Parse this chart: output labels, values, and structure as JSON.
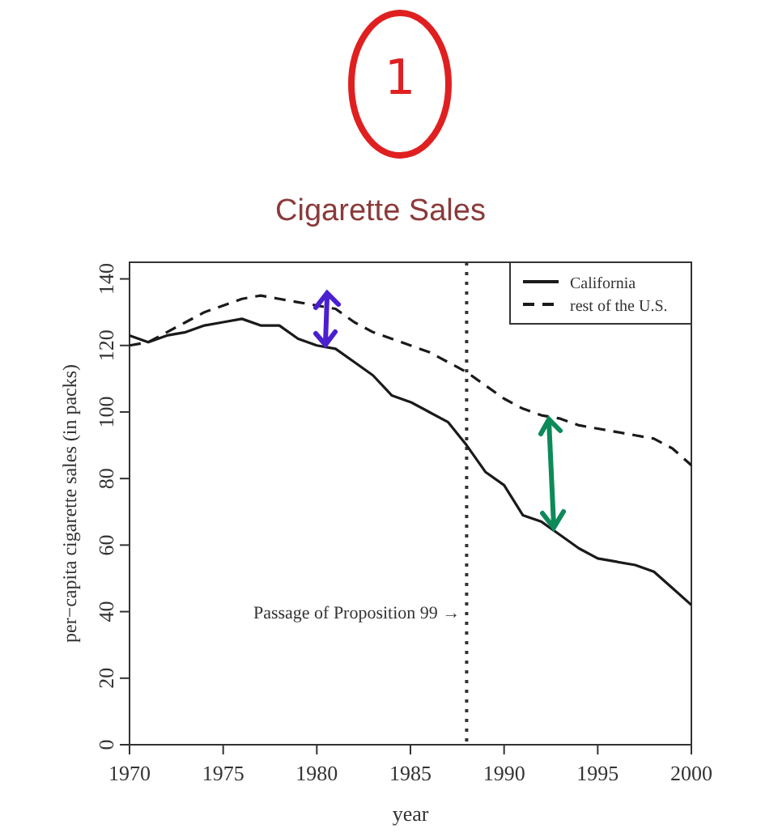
{
  "chart_data": {
    "type": "line",
    "title": "Cigarette Sales",
    "xlabel": "year",
    "ylabel": "per−capita cigarette sales (in packs)",
    "x": [
      1970,
      1971,
      1972,
      1973,
      1974,
      1975,
      1976,
      1977,
      1978,
      1979,
      1980,
      1981,
      1982,
      1983,
      1984,
      1985,
      1986,
      1987,
      1988,
      1989,
      1990,
      1991,
      1992,
      1993,
      1994,
      1995,
      1996,
      1997,
      1998,
      1999,
      2000
    ],
    "series": [
      {
        "name": "California",
        "color": "#1a1a1a",
        "line_style": "solid",
        "values": [
          123,
          121,
          123,
          124,
          126,
          127,
          128,
          126,
          126,
          122,
          120,
          119,
          115,
          111,
          105,
          103,
          100,
          97,
          90,
          82,
          78,
          69,
          67,
          63,
          59,
          56,
          55,
          54,
          52,
          47,
          42
        ]
      },
      {
        "name": "rest of the U.S.",
        "color": "#1a1a1a",
        "line_style": "dashed",
        "values": [
          120,
          121,
          124,
          127,
          130,
          132,
          134,
          135,
          134,
          133,
          132,
          131,
          127,
          124,
          122,
          120,
          118,
          115,
          112,
          108,
          104,
          101,
          99,
          98,
          96,
          95,
          94,
          93,
          92,
          89,
          84
        ]
      }
    ],
    "xlim": [
      1970,
      2000
    ],
    "xticks": [
      1970,
      1975,
      1980,
      1985,
      1990,
      1995,
      2000
    ],
    "ylim": [
      0,
      145
    ],
    "yticks": [
      0,
      20,
      40,
      60,
      80,
      100,
      120,
      140
    ],
    "ref_lines": [
      {
        "axis": "x",
        "value": 1988,
        "label": "Passage of Proposition 99 →",
        "line_style": "dotted"
      }
    ],
    "annotations": [
      "1"
    ],
    "legend": "top right",
    "grid": false
  }
}
